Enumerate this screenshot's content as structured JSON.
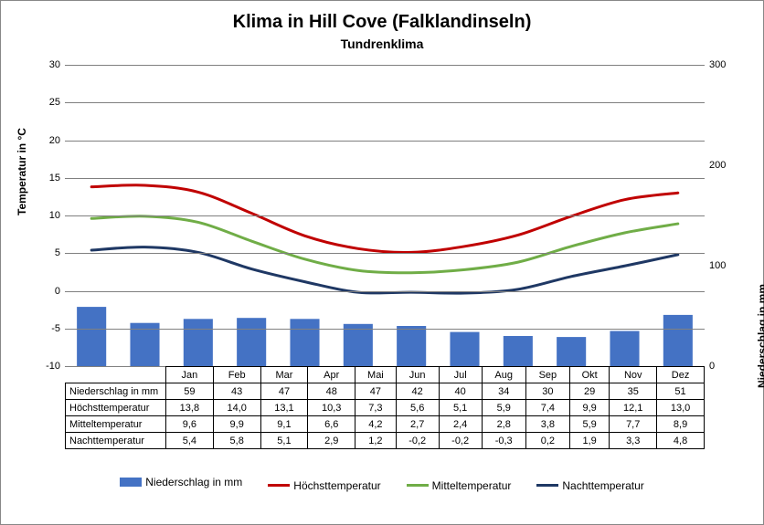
{
  "title": "Klima in Hill Cove (Falklandinseln)",
  "subtitle": "Tundrenklima",
  "y_left": {
    "label": "Temperatur in °C",
    "min": -10,
    "max": 30,
    "step": 5
  },
  "y_right": {
    "label": "Niederschlag in mm",
    "min": 0,
    "max": 300,
    "step": 100
  },
  "months": [
    "Jan",
    "Feb",
    "Mar",
    "Apr",
    "Mai",
    "Jun",
    "Jul",
    "Aug",
    "Sep",
    "Okt",
    "Nov",
    "Dez"
  ],
  "rows": [
    {
      "label": "Niederschlag in mm",
      "values": [
        "59",
        "43",
        "47",
        "48",
        "47",
        "42",
        "40",
        "34",
        "30",
        "29",
        "35",
        "51"
      ]
    },
    {
      "label": "Höchsttemperatur",
      "values": [
        "13,8",
        "14,0",
        "13,1",
        "10,3",
        "7,3",
        "5,6",
        "5,1",
        "5,9",
        "7,4",
        "9,9",
        "12,1",
        "13,0"
      ]
    },
    {
      "label": "Mitteltemperatur",
      "values": [
        "9,6",
        "9,9",
        "9,1",
        "6,6",
        "4,2",
        "2,7",
        "2,4",
        "2,8",
        "3,8",
        "5,9",
        "7,7",
        "8,9"
      ]
    },
    {
      "label": "Nachttemperatur",
      "values": [
        "5,4",
        "5,8",
        "5,1",
        "2,9",
        "1,2",
        "-0,2",
        "-0,2",
        "-0,3",
        "0,2",
        "1,9",
        "3,3",
        "4,8"
      ]
    }
  ],
  "series": {
    "precip": {
      "color": "#4472c4",
      "type": "bar",
      "values": [
        59,
        43,
        47,
        48,
        47,
        42,
        40,
        34,
        30,
        29,
        35,
        51
      ],
      "legend": "Niederschlag in mm"
    },
    "high": {
      "color": "#c00000",
      "type": "line",
      "values": [
        13.8,
        14.0,
        13.1,
        10.3,
        7.3,
        5.6,
        5.1,
        5.9,
        7.4,
        9.9,
        12.1,
        13.0
      ],
      "legend": "Höchsttemperatur"
    },
    "mid": {
      "color": "#70ad47",
      "type": "line",
      "values": [
        9.6,
        9.9,
        9.1,
        6.6,
        4.2,
        2.7,
        2.4,
        2.8,
        3.8,
        5.9,
        7.7,
        8.9
      ],
      "legend": "Mitteltemperatur"
    },
    "low": {
      "color": "#1f3864",
      "type": "line",
      "values": [
        5.4,
        5.8,
        5.1,
        2.9,
        1.2,
        -0.2,
        -0.2,
        -0.3,
        0.2,
        1.9,
        3.3,
        4.8
      ],
      "legend": "Nachttemperatur"
    }
  },
  "bar_width_ratio": 0.55,
  "line_width": 3,
  "grid_color": "#808080"
}
